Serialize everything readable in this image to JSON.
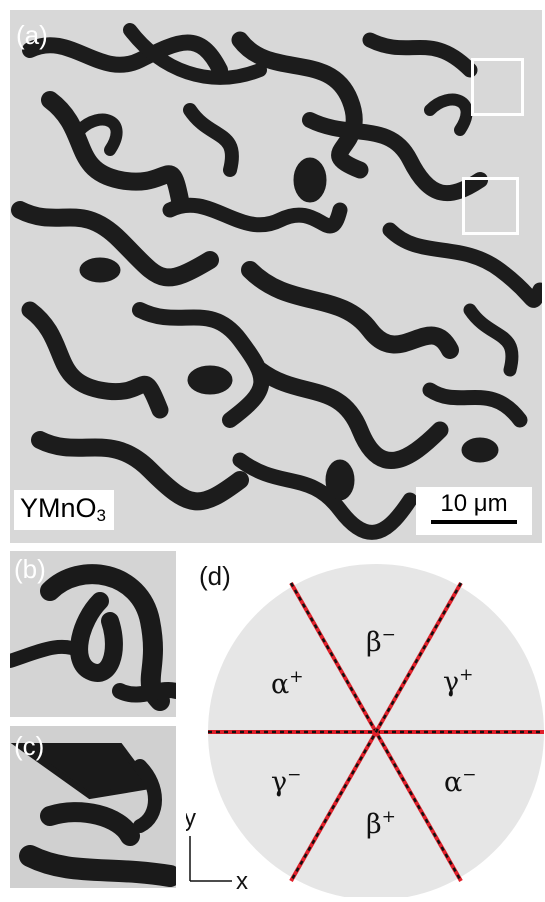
{
  "panel_a": {
    "letter": "(a)",
    "material": "YMnO",
    "material_subscript": "3",
    "scale_bar_label": "10 μm"
  },
  "panel_b": {
    "letter": "(b)"
  },
  "panel_c": {
    "letter": "(c)"
  },
  "panel_d": {
    "letter": "(d)",
    "sectors": [
      {
        "greek": "β",
        "sign": "−"
      },
      {
        "greek": "γ",
        "sign": "+"
      },
      {
        "greek": "α",
        "sign": "−"
      },
      {
        "greek": "β",
        "sign": "+"
      },
      {
        "greek": "γ",
        "sign": "−"
      },
      {
        "greek": "α",
        "sign": "+"
      }
    ],
    "axes": {
      "y": "y",
      "x": "x"
    },
    "colors": {
      "disk": "#e6e6e6",
      "line_red": "#e0202a",
      "line_black": "#111111"
    }
  }
}
